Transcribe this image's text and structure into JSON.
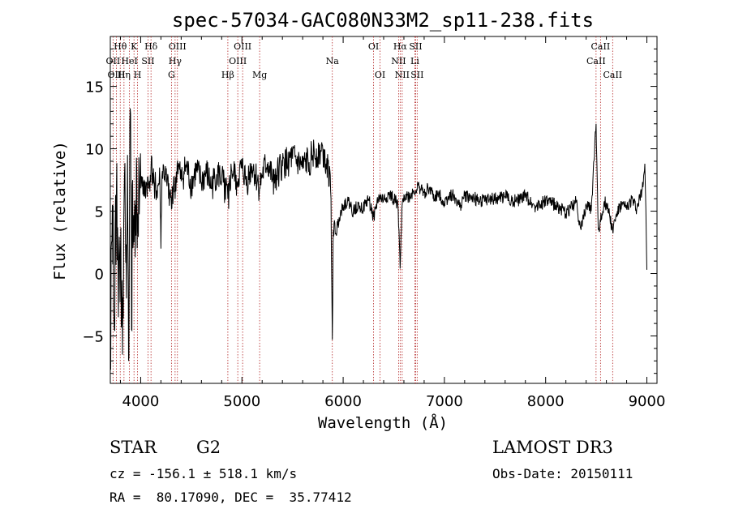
{
  "chart_data": {
    "type": "line",
    "title": "spec-57034-GAC080N33M2_sp11-238.fits",
    "xlabel": "Wavelength (Å)",
    "ylabel": "Flux (relative)",
    "xlim": [
      3700,
      9100
    ],
    "ylim": [
      -8.8,
      19
    ],
    "xticks": [
      4000,
      5000,
      6000,
      7000,
      8000,
      9000
    ],
    "yticks": [
      -5,
      0,
      5,
      10,
      15
    ],
    "grid": false,
    "line_color": "#000000",
    "marker_color": "#b22222",
    "lines": [
      {
        "label": "Hθ",
        "x": 3798,
        "row": 0
      },
      {
        "label": "OII",
        "x": 3727,
        "row": 1
      },
      {
        "label": "OIII",
        "x": 3760,
        "row": 2
      },
      {
        "label": "K",
        "x": 3934,
        "row": 0
      },
      {
        "label": "H",
        "x": 3969,
        "row": 2
      },
      {
        "label": "HeI",
        "x": 3889,
        "row": 1
      },
      {
        "label": "Hη",
        "x": 3835,
        "row": 2
      },
      {
        "label": "Hδ",
        "x": 4102,
        "row": 0
      },
      {
        "label": "SII",
        "x": 4072,
        "row": 1
      },
      {
        "label": "OIII",
        "x": 4363,
        "row": 0
      },
      {
        "label": "Hγ",
        "x": 4340,
        "row": 1
      },
      {
        "label": "G",
        "x": 4304,
        "row": 2
      },
      {
        "label": "Hβ",
        "x": 4861,
        "row": 2
      },
      {
        "label": "OIII",
        "x": 5007,
        "row": 0
      },
      {
        "label": "OIII",
        "x": 4959,
        "row": 1
      },
      {
        "label": "Mg",
        "x": 5175,
        "row": 2
      },
      {
        "label": "Na",
        "x": 5893,
        "row": 1
      },
      {
        "label": "OI",
        "x": 6300,
        "row": 0
      },
      {
        "label": "OI",
        "x": 6364,
        "row": 2
      },
      {
        "label": "Hα",
        "x": 6563,
        "row": 0
      },
      {
        "label": "NII",
        "x": 6548,
        "row": 1
      },
      {
        "label": "NII",
        "x": 6583,
        "row": 2
      },
      {
        "label": "SII",
        "x": 6716,
        "row": 0
      },
      {
        "label": "Li",
        "x": 6708,
        "row": 1
      },
      {
        "label": "SII",
        "x": 6731,
        "row": 2
      },
      {
        "label": "CaII",
        "x": 8542,
        "row": 0
      },
      {
        "label": "CaII",
        "x": 8498,
        "row": 1
      },
      {
        "label": "CaII",
        "x": 8662,
        "row": 2
      }
    ],
    "series": [
      {
        "x": [
          3700,
          3720,
          3740,
          3760,
          3780,
          3800,
          3820,
          3840,
          3860,
          3870,
          3880,
          3890,
          3900,
          3910,
          3920,
          3934,
          3950,
          3969,
          3990,
          4010,
          4030,
          4060,
          4080,
          4102,
          4130,
          4160,
          4190,
          4200,
          4210,
          4230,
          4260,
          4290,
          4304,
          4330,
          4340,
          4360,
          4400,
          4450,
          4500,
          4550,
          4600,
          4650,
          4700,
          4750,
          4800,
          4861,
          4900,
          4950,
          5000,
          5050,
          5100,
          5175,
          5200,
          5250,
          5300,
          5400,
          5500,
          5600,
          5700,
          5800,
          5850,
          5880,
          5893,
          5900,
          5910,
          5930,
          5960,
          6000,
          6050,
          6100,
          6150,
          6200,
          6250,
          6300,
          6350,
          6400,
          6450,
          6500,
          6540,
          6563,
          6580,
          6600,
          6650,
          6700,
          6750,
          6800,
          6850,
          6900,
          6950,
          7000,
          7050,
          7100,
          7150,
          7200,
          7300,
          7400,
          7500,
          7600,
          7700,
          7800,
          7900,
          8000,
          8100,
          8200,
          8300,
          8350,
          8400,
          8450,
          8498,
          8520,
          8542,
          8580,
          8620,
          8662,
          8700,
          8750,
          8800,
          8850,
          8900,
          8950,
          8980,
          8990,
          9000
        ],
        "y": [
          -7.5,
          5.5,
          -4.5,
          6.8,
          -3.5,
          2.0,
          -6.5,
          8.0,
          -2.0,
          9.5,
          -7.0,
          6.0,
          12.8,
          -4.5,
          7.5,
          2.5,
          5.5,
          4.8,
          6.5,
          7.8,
          6.2,
          7.2,
          6.8,
          8.5,
          7.4,
          6.5,
          7.5,
          2.0,
          7.8,
          8.2,
          7.0,
          6.5,
          5.2,
          7.8,
          6.0,
          8.8,
          7.4,
          8.5,
          7.0,
          8.2,
          7.2,
          8.0,
          6.8,
          7.9,
          7.6,
          6.0,
          8.2,
          7.4,
          8.4,
          7.2,
          8.6,
          6.8,
          7.8,
          8.8,
          7.5,
          8.6,
          9.2,
          8.4,
          9.5,
          9.8,
          8.8,
          6.0,
          -5.3,
          2.5,
          4.0,
          3.2,
          4.5,
          5.5,
          5.8,
          4.9,
          5.6,
          5.2,
          6.0,
          4.5,
          6.1,
          5.9,
          6.3,
          6.0,
          5.6,
          0.4,
          5.2,
          6.3,
          6.1,
          6.6,
          6.9,
          6.5,
          6.9,
          6.0,
          6.4,
          5.6,
          6.3,
          6.2,
          5.3,
          6.2,
          6.0,
          5.8,
          6.0,
          6.2,
          5.8,
          6.2,
          5.4,
          5.8,
          5.5,
          4.8,
          5.7,
          3.5,
          5.6,
          5.0,
          12.0,
          3.5,
          4.2,
          5.8,
          5.2,
          3.5,
          4.8,
          5.5,
          5.2,
          6.0,
          5.2,
          6.6,
          8.8,
          5.1,
          0.3
        ]
      }
    ]
  },
  "info": {
    "object_type": "STAR",
    "subclass": "G2",
    "survey": "LAMOST DR3",
    "redshift": "cz = -156.1 ± 518.1 km/s",
    "obs_date": "Obs-Date: 20150111",
    "coords": "RA =  80.17090, DEC =  35.77412"
  }
}
